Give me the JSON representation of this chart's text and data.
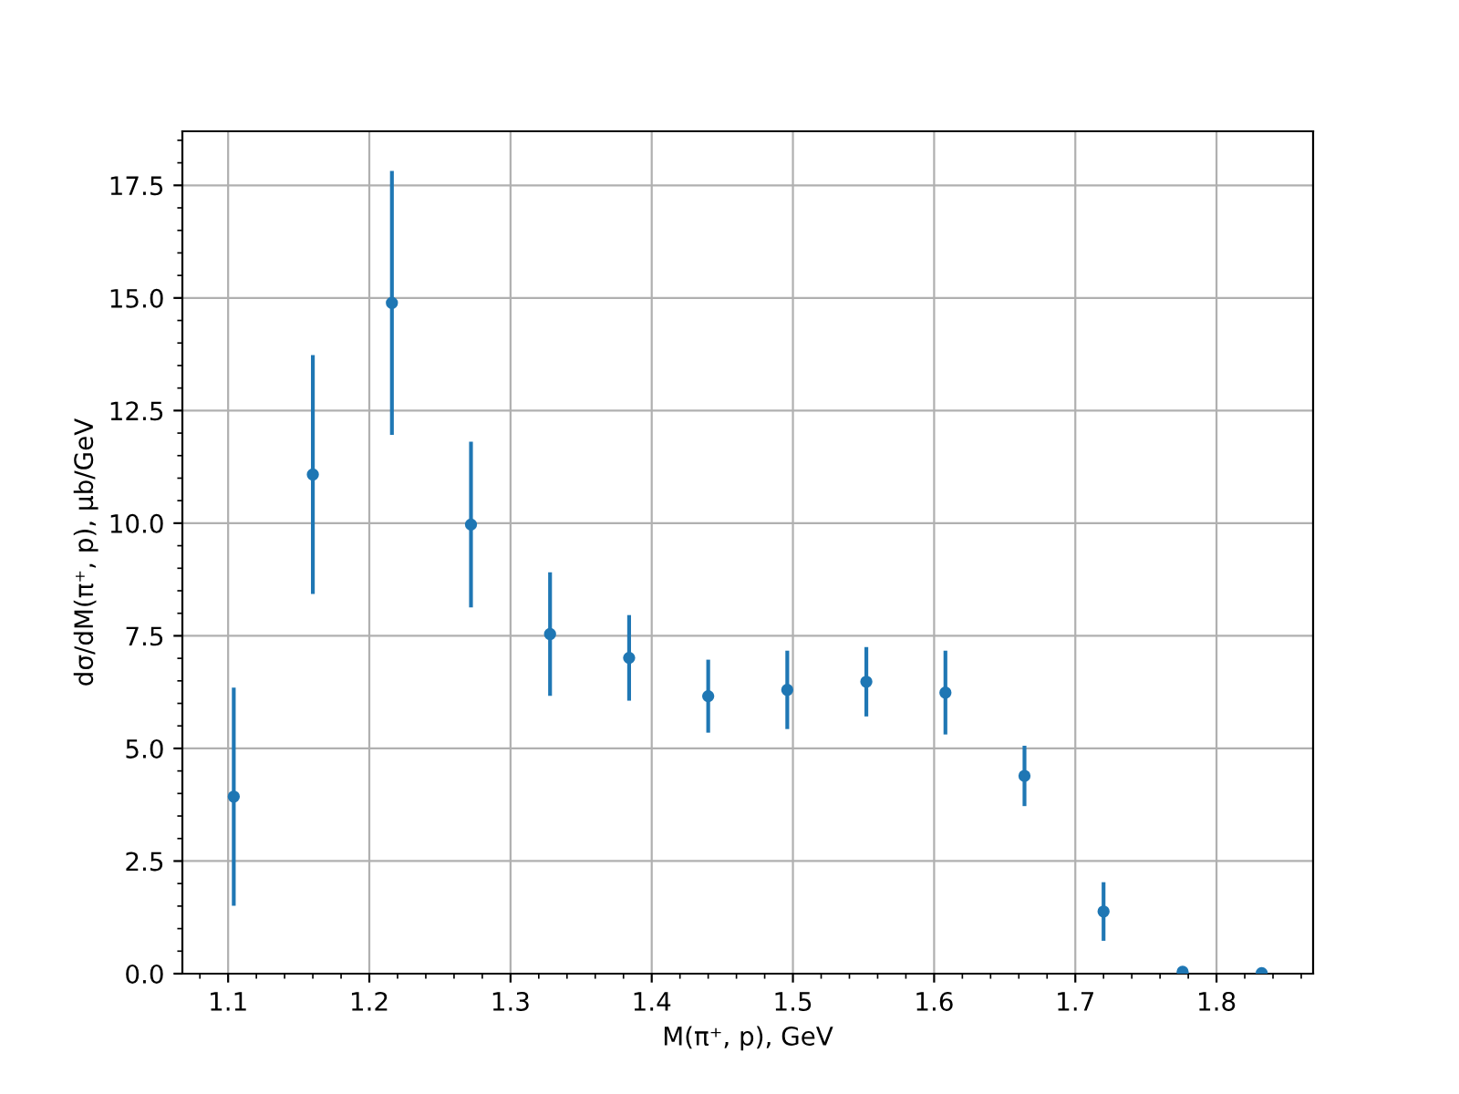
{
  "chart_data": {
    "type": "scatter",
    "xlabel": "M(π⁺, p), GeV",
    "ylabel": "dσ/dM(π⁺, p), μb/GeV",
    "x": [
      1.104,
      1.16,
      1.216,
      1.272,
      1.328,
      1.384,
      1.44,
      1.496,
      1.552,
      1.608,
      1.664,
      1.72,
      1.776,
      1.832
    ],
    "values": [
      3.93,
      11.08,
      14.89,
      9.97,
      7.54,
      7.01,
      6.16,
      6.3,
      6.48,
      6.24,
      4.39,
      1.38,
      0.04,
      0.01
    ],
    "errors": [
      2.42,
      2.65,
      2.93,
      1.84,
      1.37,
      0.95,
      0.81,
      0.87,
      0.77,
      0.93,
      0.67,
      0.65,
      null,
      null
    ],
    "color": "#1f77b4",
    "marker": "circle",
    "xlim": [
      1.0676,
      1.8684
    ],
    "ylim": [
      0,
      18.7
    ],
    "xticks": [
      1.1,
      1.2,
      1.3,
      1.4,
      1.5,
      1.6,
      1.7,
      1.8
    ],
    "yticks": [
      {
        "value": 0,
        "label": "0.0"
      },
      2.5,
      {
        "value": 5,
        "label": "5.0"
      },
      7.5,
      {
        "value": 10,
        "label": "10.0"
      },
      12.5,
      {
        "value": 15,
        "label": "15.0"
      },
      17.5
    ],
    "grid": true
  }
}
